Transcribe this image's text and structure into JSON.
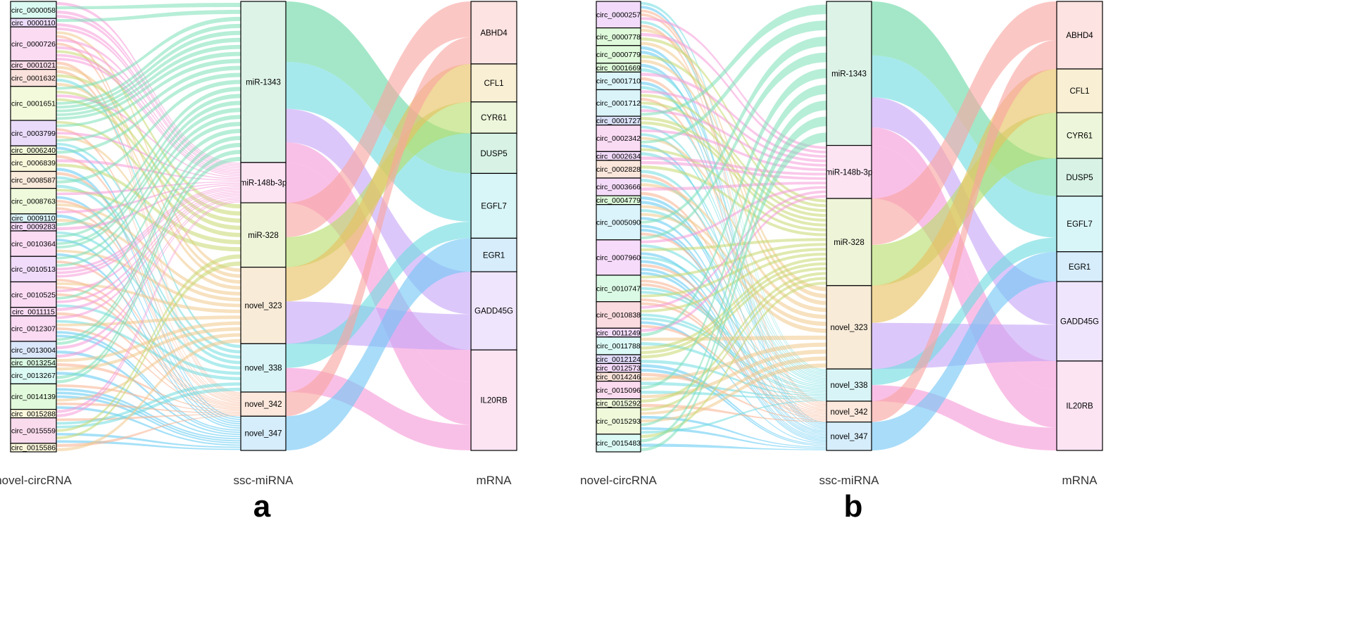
{
  "figure": {
    "panels": [
      {
        "letter": "a",
        "axis_titles": [
          "novel-circRNA",
          "ssc-miRNA",
          "mRNA"
        ],
        "circRNAs": [
          "circ_0000058",
          "circ_0000110",
          "circ_0000726",
          "circ_0001021",
          "circ_0001632",
          "circ_0001651",
          "circ_0003799",
          "circ_0006240",
          "circ_0006839",
          "circ_0008587",
          "circ_0008763",
          "circ_0009110",
          "circ_0009283",
          "circ_0010364",
          "circ_0010513",
          "circ_0010525",
          "circ_0011115",
          "circ_0012307",
          "circ_0013004",
          "circ_0013254",
          "circ_0013267",
          "circ_0014139",
          "circ_0015288",
          "circ_0015559",
          "circ_0015586"
        ],
        "circ_weights": [
          2,
          1,
          4,
          1,
          2,
          4,
          3,
          1,
          2,
          2,
          3,
          1,
          1,
          3,
          3,
          3,
          1,
          3,
          2,
          1,
          2,
          3,
          1,
          3,
          1
        ],
        "miRNAs": [
          "miR-1343",
          "miR-148b-3p",
          "miR-328",
          "novel_323",
          "novel_338",
          "novel_342",
          "novel_347"
        ],
        "mirna_weights": [
          8,
          2,
          3.2,
          3.8,
          2.4,
          1.2,
          1.7
        ],
        "mirna_colors": [
          "#7BE0B8",
          "#F59AD8",
          "#C7D870",
          "#F0C98A",
          "#6FDDE0",
          "#F7B08E",
          "#5CC8F2"
        ],
        "mRNAs": [
          "ABHD4",
          "CFL1",
          "CYR61",
          "DUSP5",
          "EGFL7",
          "EGR1",
          "GADD45G",
          "IL20RB"
        ],
        "mrna_weights": [
          2.8,
          1.7,
          1.4,
          1.8,
          2.9,
          1.5,
          3.5,
          4.5
        ],
        "mrna_colors": [
          "#F8A5A0",
          "#E8C060",
          "#B7DD6A",
          "#6BD8A6",
          "#6FDCE0",
          "#72C6F5",
          "#C6A5F7",
          "#F59AD8"
        ],
        "mirna_mrna_links": [
          [
            "miR-1343",
            "DUSP5",
            4.5
          ],
          [
            "miR-1343",
            "EGFL7",
            3.5
          ],
          [
            "miR-1343",
            "GADD45G",
            2.5
          ],
          [
            "miR-1343",
            "IL20RB",
            1.5
          ],
          [
            "miR-148b-3p",
            "IL20RB",
            2
          ],
          [
            "miR-328",
            "ABHD4",
            1.6
          ],
          [
            "miR-328",
            "CYR61",
            1.4
          ],
          [
            "novel_323",
            "CFL1",
            1.7
          ],
          [
            "novel_323",
            "GADD45G",
            2.1
          ],
          [
            "novel_338",
            "EGFL7",
            1.2
          ],
          [
            "novel_338",
            "IL20RB",
            1.2
          ],
          [
            "novel_342",
            "ABHD4",
            1.2
          ],
          [
            "novel_347",
            "EGR1",
            1.5
          ]
        ]
      },
      {
        "letter": "b",
        "axis_titles": [
          "novel-circRNA",
          "ssc-miRNA",
          "mRNA"
        ],
        "circRNAs": [
          "circ_0000257",
          "circ_0000778",
          "circ_0000779",
          "circ_0001669",
          "circ_0001710",
          "circ_0001712",
          "circ_0001727",
          "circ_0002342",
          "circ_0002634",
          "circ_0002828",
          "circ_0003666",
          "circ_0004779",
          "circ_0005090",
          "circ_0007960",
          "circ_0010747",
          "circ_0010838",
          "circ_0011249",
          "circ_0011788",
          "circ_0012124",
          "circ_0012573",
          "circ_0014246",
          "circ_0015096",
          "circ_0015292",
          "circ_0015293",
          "circ_0015483"
        ],
        "circ_weights": [
          3,
          2,
          2,
          1,
          2,
          3,
          1,
          3,
          1,
          2,
          2,
          1,
          4,
          4,
          3,
          3,
          1,
          2,
          1,
          1,
          1,
          2,
          1,
          3,
          2
        ],
        "miRNAs": [
          "miR-1343",
          "miR-148b-3p",
          "miR-328",
          "novel_323",
          "novel_338",
          "novel_342",
          "novel_347"
        ],
        "mirna_weights": [
          7.6,
          2.8,
          4.6,
          4.4,
          1.7,
          1.1,
          1.5
        ],
        "mirna_colors": [
          "#7BE0B8",
          "#F59AD8",
          "#C7D870",
          "#F0C98A",
          "#6FDDE0",
          "#F7B08E",
          "#5CC8F2"
        ],
        "mRNAs": [
          "ABHD4",
          "CFL1",
          "CYR61",
          "DUSP5",
          "EGFL7",
          "EGR1",
          "GADD45G",
          "IL20RB"
        ],
        "mrna_weights": [
          3.4,
          2.2,
          2.3,
          1.9,
          2.8,
          1.5,
          4,
          4.5
        ],
        "mrna_colors": [
          "#F8A5A0",
          "#E8C060",
          "#B7DD6A",
          "#6BD8A6",
          "#6FDCE0",
          "#72C6F5",
          "#C6A5F7",
          "#F59AD8"
        ],
        "mirna_mrna_links": [
          [
            "miR-1343",
            "DUSP5",
            4.5
          ],
          [
            "miR-1343",
            "EGFL7",
            3.5
          ],
          [
            "miR-1343",
            "GADD45G",
            2.5
          ],
          [
            "miR-1343",
            "IL20RB",
            1.5
          ],
          [
            "miR-148b-3p",
            "IL20RB",
            2
          ],
          [
            "miR-328",
            "ABHD4",
            1.6
          ],
          [
            "miR-328",
            "CYR61",
            1.4
          ],
          [
            "novel_323",
            "CFL1",
            1.7
          ],
          [
            "novel_323",
            "GADD45G",
            2.1
          ],
          [
            "novel_338",
            "EGFL7",
            1.2
          ],
          [
            "novel_338",
            "IL20RB",
            1.2
          ],
          [
            "novel_342",
            "ABHD4",
            1.2
          ],
          [
            "novel_347",
            "EGR1",
            1.5
          ]
        ]
      }
    ]
  }
}
